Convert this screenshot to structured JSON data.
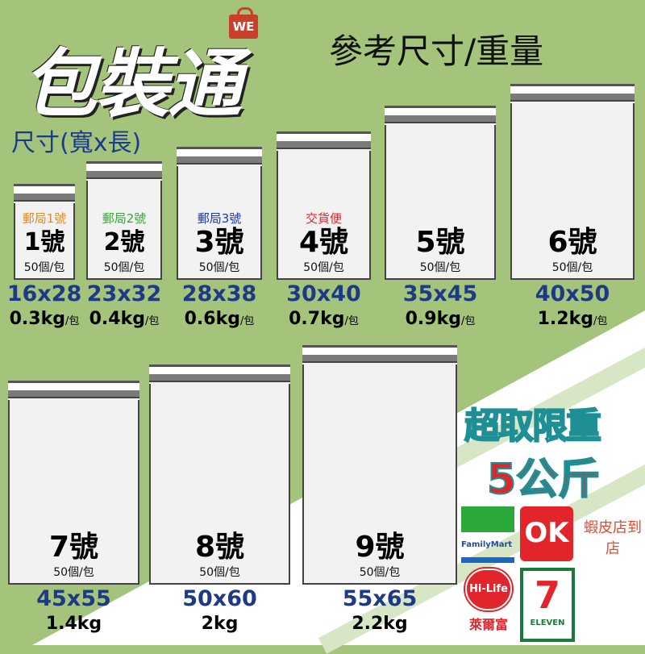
{
  "header": {
    "logo_text": "包裝通",
    "brand_badge": "WE",
    "subtitle": "尺寸(寬x長)",
    "reference": "參考尺寸/重量"
  },
  "bags": [
    {
      "post_label": "郵局1號",
      "post_color": "#e88a1e",
      "number": "1號",
      "qty": "50個/包",
      "size": "16x28",
      "weight": "0.3kg",
      "unit": "/包"
    },
    {
      "post_label": "郵局2號",
      "post_color": "#3aa83a",
      "number": "2號",
      "qty": "50個/包",
      "size": "23x32",
      "weight": "0.4kg",
      "unit": "/包"
    },
    {
      "post_label": "郵局3號",
      "post_color": "#1c3aa8",
      "number": "3號",
      "qty": "50個/包",
      "size": "28x38",
      "weight": "0.6kg",
      "unit": "/包"
    },
    {
      "post_label": "交貨便",
      "post_color": "#e2252b",
      "number": "4號",
      "qty": "50個/包",
      "size": "30x40",
      "weight": "0.7kg",
      "unit": "/包"
    },
    {
      "post_label": "",
      "number": "5號",
      "qty": "50個/包",
      "size": "35x45",
      "weight": "0.9kg",
      "unit": "/包"
    },
    {
      "post_label": "",
      "number": "6號",
      "qty": "50個/包",
      "size": "40x50",
      "weight": "1.2kg",
      "unit": "/包"
    },
    {
      "post_label": "",
      "number": "7號",
      "qty": "50個/包",
      "size": "45x55",
      "weight": "1.4kg",
      "unit": ""
    },
    {
      "post_label": "",
      "number": "8號",
      "qty": "50個/包",
      "size": "50x60",
      "weight": "2kg",
      "unit": ""
    },
    {
      "post_label": "",
      "number": "9號",
      "qty": "50個/包",
      "size": "55x65",
      "weight": "2.2kg",
      "unit": ""
    }
  ],
  "promo": {
    "limit_label": "超取限重",
    "limit_value": "5公斤"
  },
  "stores": {
    "familymart": "FamilyMart",
    "ok": "OK",
    "shopee": "蝦皮店到店",
    "hilife": "Hi-Life",
    "hilife_cn": "萊爾富",
    "seven": "7",
    "seven_sub": "ELEVEN"
  }
}
